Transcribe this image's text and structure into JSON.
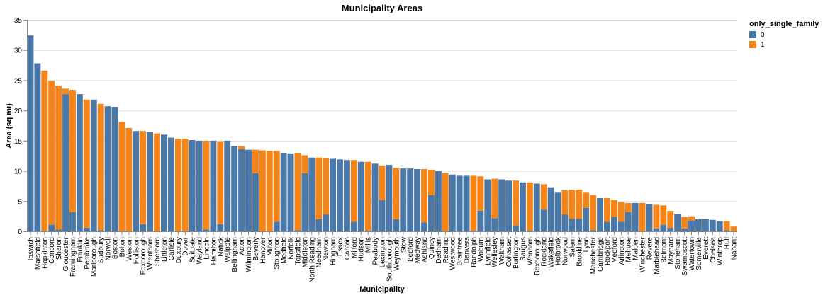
{
  "chart_data": {
    "type": "bar",
    "stacked": true,
    "title": "Municipality Areas",
    "xlabel": "Municipality",
    "ylabel": "Area (sq mi)",
    "ylim": [
      0,
      35
    ],
    "yticks": [
      0,
      5,
      10,
      15,
      20,
      25,
      30,
      35
    ],
    "grid": true,
    "legend": {
      "title": "only_single_family",
      "placement": "top-right",
      "entries": [
        {
          "label": "0",
          "color": "#4c78a8"
        },
        {
          "label": "1",
          "color": "#f58518"
        }
      ]
    },
    "categories": [
      "Ipswich",
      "Marshfield",
      "Hopkinton",
      "Concord",
      "Sharon",
      "Gloucester",
      "Framingham",
      "Franklin",
      "Pembroke",
      "Marlborough",
      "Sudbury",
      "Norwell",
      "Boston",
      "Bolton",
      "Weston",
      "Holliston",
      "Foxborough",
      "Wrentham",
      "Sherborn",
      "Littleton",
      "Carlisle",
      "Duxbury",
      "Dover",
      "Scituate",
      "Wayland",
      "Lincoln",
      "Hamilton",
      "Natick",
      "Walpole",
      "Bellingham",
      "Acton",
      "Wilmington",
      "Beverly",
      "Hanover",
      "Milton",
      "Stoughton",
      "Medfield",
      "Norfolk",
      "Topsfield",
      "Middleton",
      "North Reading",
      "Needham",
      "Newton",
      "Hingham",
      "Essex",
      "Canton",
      "Milford",
      "Hudson",
      "Millis",
      "Peabody",
      "Lexington",
      "Southborough",
      "Weymouth",
      "Stow",
      "Bedford",
      "Medway",
      "Ashland",
      "Quincy",
      "Dedham",
      "Reading",
      "Westwood",
      "Braintree",
      "Danvers",
      "Randolph",
      "Woburn",
      "Lynnfield",
      "Wellesley",
      "Waltham",
      "Cohasset",
      "Burlington",
      "Saugus",
      "Wenham",
      "Boxborough",
      "Rockland",
      "Wakefield",
      "Holbrook",
      "Norwood",
      "Salem",
      "Brookline",
      "Lynn",
      "Manchester",
      "Cambridge",
      "Rockport",
      "Medford",
      "Arlington",
      "Melrose",
      "Malden",
      "Winchester",
      "Revere",
      "Marblehead",
      "Belmont",
      "Maynard",
      "Stoneham",
      "Swampscott",
      "Watertown",
      "Somerville",
      "Everett",
      "Chelsea",
      "Winthrop",
      "Hull",
      "Nahant"
    ],
    "series": [
      {
        "name": "0",
        "values": [
          32.4,
          27.8,
          0,
          1.1,
          0.3,
          22.7,
          3.2,
          22.7,
          0.6,
          21.8,
          0.2,
          20.7,
          20.6,
          0,
          0,
          16.6,
          1.2,
          16.4,
          0,
          16.0,
          15.5,
          0,
          0,
          15.1,
          15.0,
          0.3,
          15.0,
          1.2,
          15.0,
          14.1,
          13.6,
          13.5,
          9.6,
          0,
          0,
          1.6,
          13.0,
          12.9,
          0.2,
          9.6,
          12.2,
          2.0,
          2.8,
          12.0,
          11.9,
          11.8,
          1.6,
          11.5,
          0.1,
          11.2,
          5.2,
          11.0,
          2.0,
          10.4,
          10.4,
          10.3,
          1.5,
          6.0,
          10.0,
          0,
          9.4,
          9.2,
          9.2,
          0.1,
          3.4,
          8.6,
          2.2,
          8.6,
          8.4,
          0.9,
          8.1,
          0.1,
          7.9,
          3.6,
          7.3,
          6.4,
          2.8,
          2.1,
          2.1,
          3.9,
          0.2,
          5.5,
          1.6,
          2.4,
          1.6,
          3.2,
          4.7,
          0,
          4.5,
          0.5,
          1.1,
          0.6,
          2.9,
          0.5,
          1.8,
          2.0,
          2.0,
          1.9,
          1.7,
          0.2,
          0
        ],
        "color": "#4c78a8"
      },
      {
        "name": "1",
        "values": [
          0,
          0,
          26.6,
          23.8,
          23.8,
          0.9,
          20.2,
          0,
          21.2,
          0,
          20.9,
          0,
          0,
          18.1,
          17.1,
          0,
          15.4,
          0,
          16.2,
          0,
          0,
          15.3,
          15.3,
          0,
          0,
          14.7,
          0,
          13.7,
          0,
          0,
          0.5,
          0,
          3.9,
          13.4,
          13.3,
          11.7,
          0,
          0,
          12.8,
          3.0,
          0,
          10.2,
          9.3,
          0,
          0,
          0,
          10.2,
          0,
          11.4,
          0,
          5.7,
          0,
          8.5,
          0,
          0,
          0,
          8.8,
          4.2,
          0,
          9.6,
          0,
          0,
          0,
          9.1,
          5.7,
          0,
          6.5,
          0,
          0,
          7.5,
          0,
          8.0,
          0,
          4.2,
          0,
          0,
          4.0,
          4.8,
          4.8,
          2.5,
          5.8,
          0,
          3.9,
          2.8,
          3.2,
          1.5,
          0,
          4.7,
          0,
          3.9,
          3.2,
          2.8,
          0,
          1.9,
          0.7,
          0,
          0,
          0,
          0,
          1.5,
          0.8
        ],
        "color": "#f58518"
      }
    ]
  }
}
